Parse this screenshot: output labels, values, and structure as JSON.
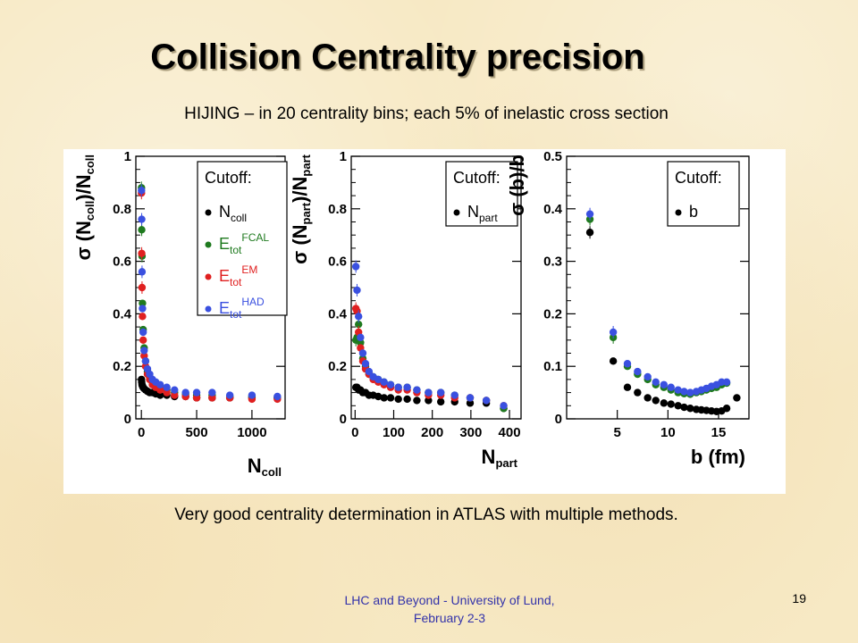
{
  "slide": {
    "title": "Collision Centrality precision",
    "subtitle": "HIJING – in 20 centrality bins; each 5% of inelastic cross section",
    "caption": "Very good centrality determination in ATLAS with multiple methods.",
    "footer_line1": "LHC and Beyond - University of Lund,",
    "footer_line2": "February 2-3",
    "page_number": "19"
  },
  "colors": {
    "black": "#000000",
    "green": "#1f7a1f",
    "red": "#e02020",
    "blue": "#3a50e0",
    "footer_text": "#3333aa"
  },
  "chart_data": [
    {
      "type": "scatter",
      "id": "ncoll",
      "xlabel": "N",
      "xlabel_sub": "coll",
      "ylabel_parts": [
        "σ (N",
        "coll",
        ")/N",
        "coll"
      ],
      "xlim": [
        -50,
        1300
      ],
      "ylim": [
        0,
        1
      ],
      "xticks": [
        0,
        500,
        1000
      ],
      "yticks": [
        0,
        0.2,
        0.4,
        0.6,
        0.8,
        1
      ],
      "ytick_labels": [
        "0",
        "0.2",
        "0.4",
        "0.6",
        "0.8",
        "1"
      ],
      "legend": {
        "title": "Cutoff:",
        "entries": [
          {
            "symbol": "•",
            "main": "N",
            "sub": "coll",
            "sup": "",
            "color": "#000000"
          },
          {
            "symbol": "•",
            "main": "E",
            "sub": "tot",
            "sup": "FCAL",
            "color": "#1f7a1f"
          },
          {
            "symbol": "•",
            "main": "E",
            "sub": "tot",
            "sup": "EM",
            "color": "#e02020"
          },
          {
            "symbol": "•",
            "main": "E",
            "sub": "tot",
            "sup": "HAD",
            "color": "#3a50e0"
          }
        ]
      },
      "series": [
        {
          "color": "#000000",
          "x": [
            1,
            3,
            6,
            10,
            16,
            25,
            38,
            55,
            75,
            100,
            130,
            170,
            230,
            300,
            400,
            500,
            640,
            800,
            1000,
            1230
          ],
          "y": [
            0.15,
            0.14,
            0.13,
            0.125,
            0.12,
            0.115,
            0.11,
            0.105,
            0.1,
            0.1,
            0.095,
            0.09,
            0.09,
            0.085,
            0.085,
            0.08,
            0.08,
            0.08,
            0.08,
            0.08
          ]
        },
        {
          "color": "#1f7a1f",
          "x": [
            1,
            3,
            6,
            10,
            16,
            25,
            38,
            55,
            75,
            100,
            130,
            170,
            230,
            300,
            400,
            500,
            640,
            800,
            1000,
            1230
          ],
          "y": [
            0.88,
            0.72,
            0.62,
            0.44,
            0.34,
            0.27,
            0.22,
            0.18,
            0.16,
            0.14,
            0.13,
            0.12,
            0.11,
            0.1,
            0.095,
            0.09,
            0.09,
            0.085,
            0.085,
            0.08
          ]
        },
        {
          "color": "#e02020",
          "x": [
            1,
            3,
            6,
            10,
            16,
            25,
            38,
            55,
            75,
            100,
            130,
            170,
            230,
            300,
            400,
            500,
            640,
            800,
            1000,
            1230
          ],
          "y": [
            0.86,
            0.63,
            0.5,
            0.39,
            0.3,
            0.24,
            0.2,
            0.17,
            0.15,
            0.13,
            0.12,
            0.11,
            0.1,
            0.09,
            0.085,
            0.08,
            0.08,
            0.08,
            0.075,
            0.075
          ]
        },
        {
          "color": "#3a50e0",
          "x": [
            1,
            3,
            6,
            10,
            16,
            25,
            38,
            55,
            75,
            100,
            130,
            170,
            230,
            300,
            400,
            500,
            640,
            800,
            1000,
            1230
          ],
          "y": [
            0.87,
            0.76,
            0.56,
            0.42,
            0.33,
            0.26,
            0.22,
            0.19,
            0.17,
            0.15,
            0.14,
            0.13,
            0.12,
            0.11,
            0.1,
            0.1,
            0.1,
            0.09,
            0.09,
            0.085
          ]
        }
      ]
    },
    {
      "type": "scatter",
      "id": "npart",
      "xlabel": "N",
      "xlabel_sub": "part",
      "ylabel_parts": [
        "σ (N",
        "part",
        ")/N",
        "part"
      ],
      "xlim": [
        -10,
        430
      ],
      "ylim": [
        0,
        1
      ],
      "xticks": [
        0,
        100,
        200,
        300,
        400
      ],
      "yticks": [
        0,
        0.2,
        0.4,
        0.6,
        0.8,
        1
      ],
      "ytick_labels": [
        "0",
        "0.2",
        "0.4",
        "0.6",
        "0.8",
        "1"
      ],
      "legend": {
        "title": "Cutoff:",
        "entries": [
          {
            "symbol": "•",
            "main": "N",
            "sub": "part",
            "sup": "",
            "color": "#000000"
          }
        ]
      },
      "series": [
        {
          "color": "#000000",
          "x": [
            2,
            5,
            9,
            14,
            20,
            27,
            36,
            47,
            60,
            75,
            92,
            112,
            135,
            160,
            190,
            222,
            258,
            298,
            340,
            385
          ],
          "y": [
            0.12,
            0.12,
            0.11,
            0.11,
            0.1,
            0.1,
            0.09,
            0.09,
            0.085,
            0.08,
            0.08,
            0.075,
            0.075,
            0.07,
            0.07,
            0.065,
            0.065,
            0.06,
            0.06,
            0.04
          ]
        },
        {
          "color": "#1f7a1f",
          "x": [
            2,
            5,
            9,
            14,
            20,
            27,
            36,
            47,
            60,
            75,
            92,
            112,
            135,
            160,
            190,
            222,
            258,
            298,
            340,
            385
          ],
          "y": [
            0.3,
            0.31,
            0.36,
            0.29,
            0.23,
            0.2,
            0.17,
            0.16,
            0.15,
            0.14,
            0.13,
            0.12,
            0.12,
            0.11,
            0.1,
            0.1,
            0.09,
            0.08,
            0.07,
            0.04
          ]
        },
        {
          "color": "#e02020",
          "x": [
            2,
            5,
            9,
            14,
            20,
            27,
            36,
            47,
            60,
            75,
            92,
            112,
            135,
            160,
            190,
            222,
            258,
            298,
            340,
            385
          ],
          "y": [
            0.42,
            0.41,
            0.33,
            0.27,
            0.22,
            0.19,
            0.17,
            0.15,
            0.14,
            0.13,
            0.12,
            0.11,
            0.11,
            0.1,
            0.09,
            0.09,
            0.08,
            0.08,
            0.07,
            0.05
          ]
        },
        {
          "color": "#3a50e0",
          "x": [
            2,
            5,
            9,
            14,
            20,
            27,
            36,
            47,
            60,
            75,
            92,
            112,
            135,
            160,
            190,
            222,
            258,
            298,
            340,
            385
          ],
          "y": [
            0.58,
            0.49,
            0.39,
            0.31,
            0.25,
            0.21,
            0.18,
            0.16,
            0.15,
            0.14,
            0.13,
            0.12,
            0.12,
            0.11,
            0.1,
            0.1,
            0.09,
            0.08,
            0.07,
            0.05
          ]
        }
      ]
    },
    {
      "type": "scatter",
      "id": "b",
      "xlabel": "b (fm)",
      "xlabel_sub": "",
      "ylabel_parts": [
        "σ (b)/b",
        "",
        "",
        ""
      ],
      "xlim": [
        0,
        18
      ],
      "ylim": [
        0,
        0.5
      ],
      "xticks": [
        5,
        10,
        15
      ],
      "yticks": [
        0,
        0.1,
        0.2,
        0.3,
        0.4,
        0.5
      ],
      "ytick_labels": [
        "0",
        "0.1",
        "0.2",
        "0.3",
        "0.4",
        "0.5"
      ],
      "legend": {
        "title": "Cutoff:",
        "entries": [
          {
            "symbol": "•",
            "main": "b",
            "sub": "",
            "sup": "",
            "color": "#000000"
          }
        ]
      },
      "series": [
        {
          "color": "#000000",
          "x": [
            2.3,
            4.6,
            6,
            7,
            8,
            8.8,
            9.6,
            10.3,
            11,
            11.6,
            12.2,
            12.8,
            13.3,
            13.8,
            14.3,
            14.8,
            15.3,
            15.8,
            16.8
          ],
          "y": [
            0.355,
            0.11,
            0.06,
            0.05,
            0.04,
            0.035,
            0.03,
            0.028,
            0.025,
            0.022,
            0.02,
            0.018,
            0.017,
            0.016,
            0.015,
            0.014,
            0.015,
            0.02,
            0.04
          ]
        },
        {
          "color": "#1f7a1f",
          "x": [
            2.3,
            4.6,
            6,
            7,
            8,
            8.8,
            9.6,
            10.3,
            11,
            11.6,
            12.2,
            12.8,
            13.3,
            13.8,
            14.3,
            14.8,
            15.3,
            15.8
          ],
          "y": [
            0.38,
            0.155,
            0.1,
            0.085,
            0.075,
            0.065,
            0.06,
            0.055,
            0.05,
            0.048,
            0.047,
            0.05,
            0.052,
            0.055,
            0.058,
            0.06,
            0.065,
            0.068
          ]
        },
        {
          "color": "#3a50e0",
          "x": [
            2.3,
            4.6,
            6,
            7,
            8,
            8.8,
            9.6,
            10.3,
            11,
            11.6,
            12.2,
            12.8,
            13.3,
            13.8,
            14.3,
            14.8,
            15.3,
            15.8
          ],
          "y": [
            0.39,
            0.165,
            0.105,
            0.09,
            0.08,
            0.07,
            0.065,
            0.06,
            0.055,
            0.052,
            0.05,
            0.052,
            0.055,
            0.058,
            0.062,
            0.065,
            0.07,
            0.07
          ]
        }
      ]
    }
  ]
}
